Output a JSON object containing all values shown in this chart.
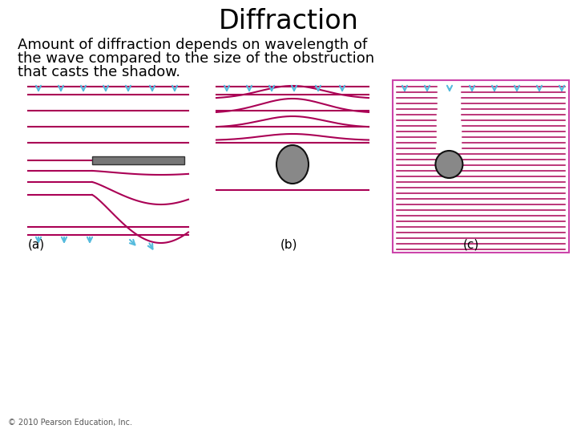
{
  "title": "Diffraction",
  "subtitle_lines": [
    "Amount of diffraction depends on wavelength of",
    "the wave compared to the size of the obstruction",
    "that casts the shadow."
  ],
  "label_a": "(a)",
  "label_b": "(b)",
  "label_c": "(c)",
  "copyright": "© 2010 Pearson Education, Inc.",
  "wave_color": "#AA0055",
  "arrow_color": "#55BBDD",
  "obstacle_color": "#888888",
  "obstacle_edge": "#111111",
  "bg_color": "#FFFFFF",
  "title_fontsize": 24,
  "subtitle_fontsize": 13,
  "label_fontsize": 11,
  "copyright_fontsize": 7
}
